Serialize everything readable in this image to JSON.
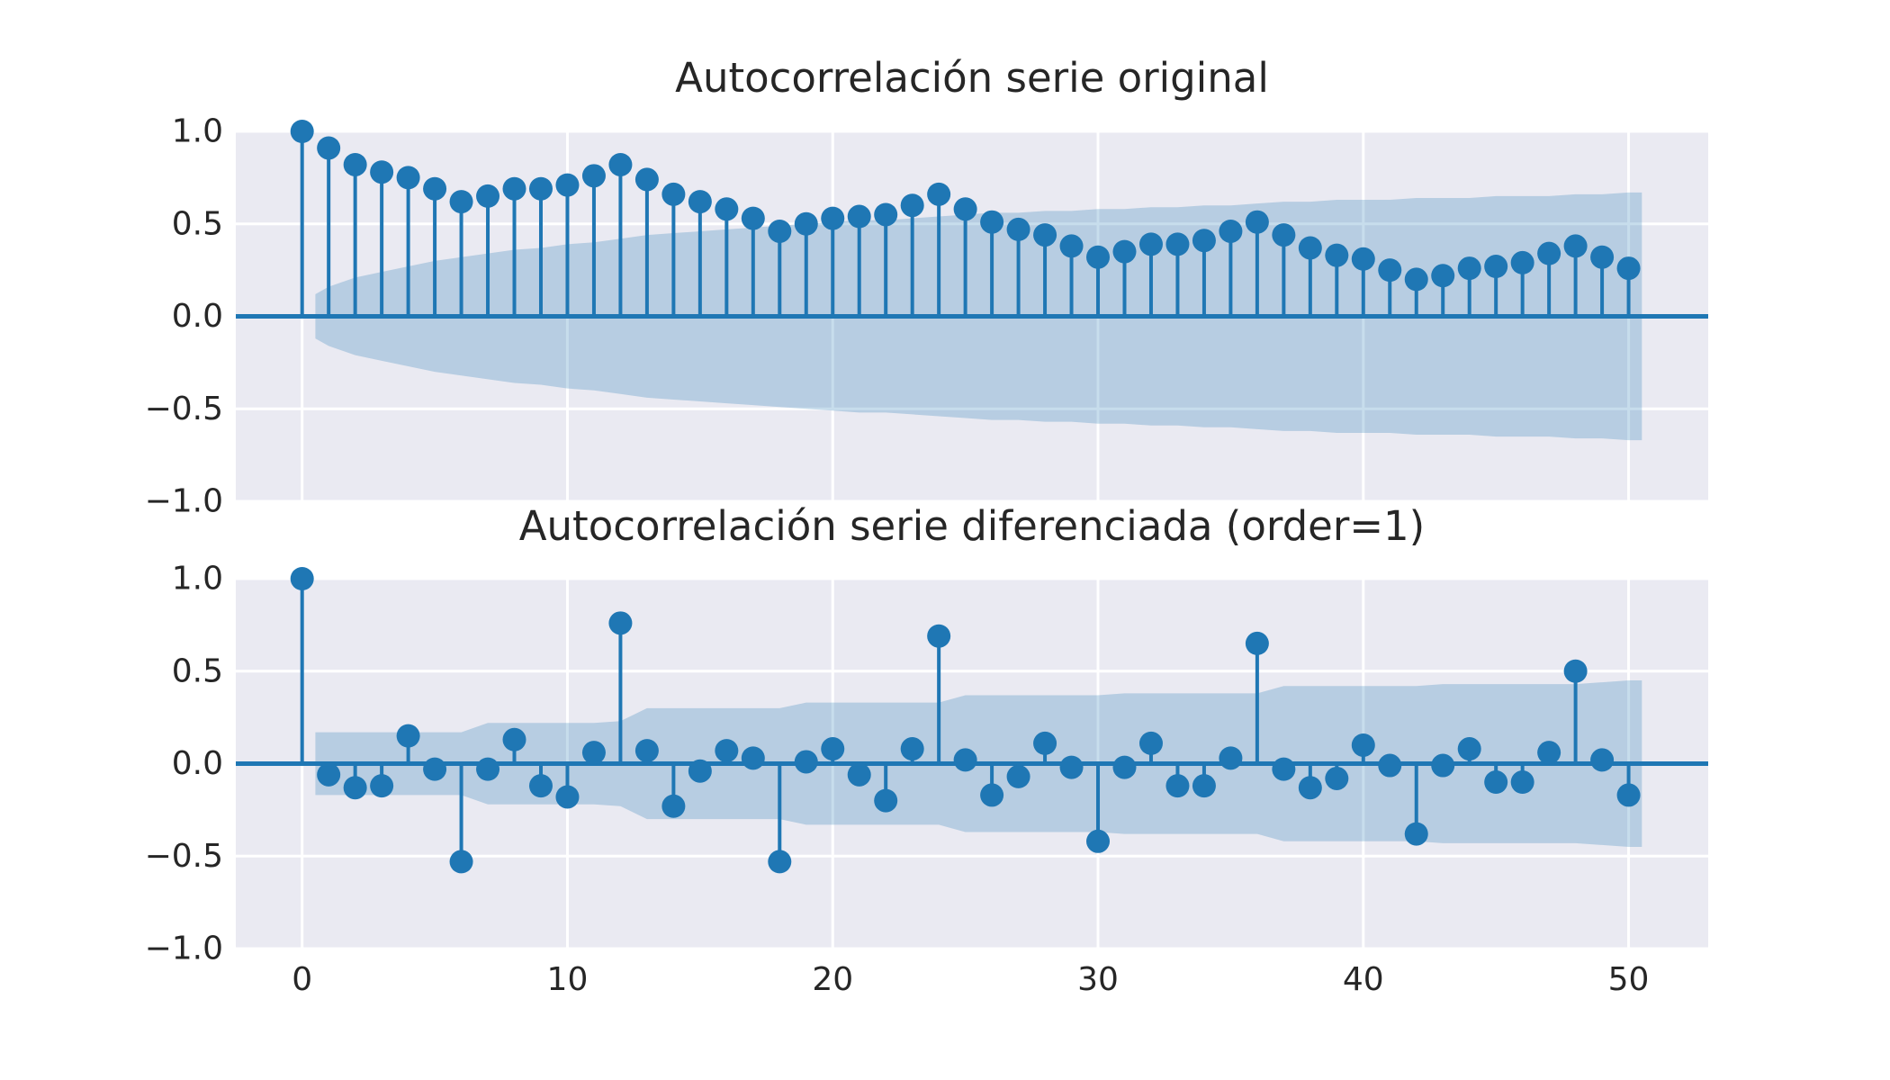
{
  "chart_data": [
    {
      "type": "stem",
      "title": "Autocorrelación serie original",
      "xlim": [
        -2.5,
        53
      ],
      "ylim": [
        -1.0,
        1.0
      ],
      "yticks": [
        1.0,
        0.5,
        0.0,
        -0.5,
        -1.0
      ],
      "ytick_labels": [
        "1.0",
        "0.5",
        "0.0",
        "−0.5",
        "−1.0"
      ],
      "xticks": [
        0,
        10,
        20,
        30,
        40,
        50
      ],
      "xtick_labels": [],
      "grid": true,
      "lags": [
        0,
        1,
        2,
        3,
        4,
        5,
        6,
        7,
        8,
        9,
        10,
        11,
        12,
        13,
        14,
        15,
        16,
        17,
        18,
        19,
        20,
        21,
        22,
        23,
        24,
        25,
        26,
        27,
        28,
        29,
        30,
        31,
        32,
        33,
        34,
        35,
        36,
        37,
        38,
        39,
        40,
        41,
        42,
        43,
        44,
        45,
        46,
        47,
        48,
        49,
        50
      ],
      "values": [
        1.0,
        0.91,
        0.82,
        0.78,
        0.75,
        0.69,
        0.62,
        0.65,
        0.69,
        0.69,
        0.71,
        0.76,
        0.82,
        0.74,
        0.66,
        0.62,
        0.58,
        0.53,
        0.46,
        0.5,
        0.53,
        0.54,
        0.55,
        0.6,
        0.66,
        0.58,
        0.51,
        0.47,
        0.44,
        0.38,
        0.32,
        0.35,
        0.39,
        0.39,
        0.41,
        0.46,
        0.51,
        0.44,
        0.37,
        0.33,
        0.31,
        0.25,
        0.2,
        0.22,
        0.26,
        0.27,
        0.29,
        0.34,
        0.38,
        0.32,
        0.26
      ],
      "confidence": {
        "x": [
          0.5,
          1,
          2,
          3,
          4,
          5,
          6,
          7,
          8,
          9,
          10,
          11,
          12,
          13,
          14,
          15,
          16,
          17,
          18,
          19,
          20,
          21,
          22,
          23,
          24,
          25,
          26,
          27,
          28,
          29,
          30,
          31,
          32,
          33,
          34,
          35,
          36,
          37,
          38,
          39,
          40,
          41,
          42,
          43,
          44,
          45,
          46,
          47,
          48,
          49,
          50,
          50.5
        ],
        "upper": [
          0.12,
          0.16,
          0.21,
          0.24,
          0.27,
          0.3,
          0.32,
          0.34,
          0.36,
          0.37,
          0.39,
          0.4,
          0.42,
          0.44,
          0.45,
          0.46,
          0.47,
          0.48,
          0.49,
          0.5,
          0.51,
          0.52,
          0.52,
          0.53,
          0.54,
          0.55,
          0.56,
          0.56,
          0.57,
          0.57,
          0.58,
          0.58,
          0.59,
          0.59,
          0.6,
          0.6,
          0.61,
          0.62,
          0.62,
          0.63,
          0.63,
          0.63,
          0.64,
          0.64,
          0.64,
          0.65,
          0.65,
          0.65,
          0.66,
          0.66,
          0.67,
          0.67
        ],
        "lower": [
          -0.12,
          -0.16,
          -0.21,
          -0.24,
          -0.27,
          -0.3,
          -0.32,
          -0.34,
          -0.36,
          -0.37,
          -0.39,
          -0.4,
          -0.42,
          -0.44,
          -0.45,
          -0.46,
          -0.47,
          -0.48,
          -0.49,
          -0.5,
          -0.51,
          -0.52,
          -0.52,
          -0.53,
          -0.54,
          -0.55,
          -0.56,
          -0.56,
          -0.57,
          -0.57,
          -0.58,
          -0.58,
          -0.59,
          -0.59,
          -0.6,
          -0.6,
          -0.61,
          -0.62,
          -0.62,
          -0.63,
          -0.63,
          -0.63,
          -0.64,
          -0.64,
          -0.64,
          -0.65,
          -0.65,
          -0.65,
          -0.66,
          -0.66,
          -0.67,
          -0.67
        ]
      }
    },
    {
      "type": "stem",
      "title": "Autocorrelación serie diferenciada (order=1)",
      "xlim": [
        -2.5,
        53
      ],
      "ylim": [
        -1.0,
        1.0
      ],
      "yticks": [
        1.0,
        0.5,
        0.0,
        -0.5,
        -1.0
      ],
      "ytick_labels": [
        "1.0",
        "0.5",
        "0.0",
        "−0.5",
        "−1.0"
      ],
      "xticks": [
        0,
        10,
        20,
        30,
        40,
        50
      ],
      "xtick_labels": [
        "0",
        "10",
        "20",
        "30",
        "40",
        "50"
      ],
      "grid": true,
      "lags": [
        0,
        1,
        2,
        3,
        4,
        5,
        6,
        7,
        8,
        9,
        10,
        11,
        12,
        13,
        14,
        15,
        16,
        17,
        18,
        19,
        20,
        21,
        22,
        23,
        24,
        25,
        26,
        27,
        28,
        29,
        30,
        31,
        32,
        33,
        34,
        35,
        36,
        37,
        38,
        39,
        40,
        41,
        42,
        43,
        44,
        45,
        46,
        47,
        48,
        49,
        50
      ],
      "values": [
        1.0,
        -0.06,
        -0.13,
        -0.12,
        0.15,
        -0.03,
        -0.53,
        -0.03,
        0.13,
        -0.12,
        -0.18,
        0.06,
        0.76,
        0.07,
        -0.23,
        -0.04,
        0.07,
        0.03,
        -0.53,
        0.01,
        0.08,
        -0.06,
        -0.2,
        0.08,
        0.69,
        0.02,
        -0.17,
        -0.07,
        0.11,
        -0.02,
        -0.42,
        -0.02,
        0.11,
        -0.12,
        -0.12,
        0.03,
        0.65,
        -0.03,
        -0.13,
        -0.08,
        0.1,
        -0.01,
        -0.38,
        -0.01,
        0.08,
        -0.1,
        -0.1,
        0.06,
        0.5,
        0.02,
        -0.17
      ],
      "confidence": {
        "x": [
          0.5,
          6,
          7,
          11,
          12,
          13,
          18,
          19,
          24,
          25,
          30,
          31,
          36,
          37,
          42,
          43,
          48,
          49,
          50,
          50.5
        ],
        "upper": [
          0.17,
          0.17,
          0.22,
          0.22,
          0.23,
          0.3,
          0.3,
          0.33,
          0.33,
          0.37,
          0.37,
          0.38,
          0.38,
          0.42,
          0.42,
          0.43,
          0.43,
          0.44,
          0.45,
          0.45
        ],
        "lower": [
          -0.17,
          -0.17,
          -0.22,
          -0.22,
          -0.23,
          -0.3,
          -0.3,
          -0.33,
          -0.33,
          -0.37,
          -0.37,
          -0.38,
          -0.38,
          -0.42,
          -0.42,
          -0.43,
          -0.43,
          -0.44,
          -0.45,
          -0.45
        ]
      }
    }
  ]
}
